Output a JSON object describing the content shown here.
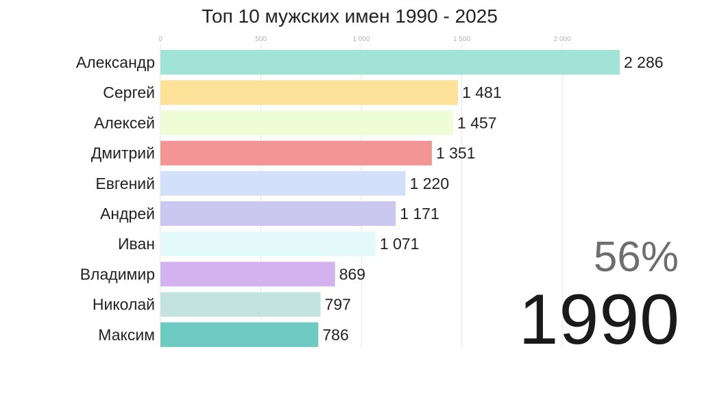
{
  "chart_data": {
    "type": "bar",
    "orientation": "horizontal",
    "title": "Топ 10 мужских имен 1990 - 2025",
    "categories": [
      "Александр",
      "Сергей",
      "Алексей",
      "Дмитрий",
      "Евгений",
      "Андрей",
      "Иван",
      "Владимир",
      "Николай",
      "Максим"
    ],
    "values": [
      2286,
      1481,
      1457,
      1351,
      1220,
      1171,
      1071,
      869,
      797,
      786
    ],
    "value_labels": [
      "2 286",
      "1 481",
      "1 457",
      "1 351",
      "1 220",
      "1 171",
      "1 071",
      "869",
      "797",
      "786"
    ],
    "colors": [
      "#a1e3d6",
      "#fde198",
      "#effdd6",
      "#f49595",
      "#d2e0fb",
      "#cbc7f0",
      "#e3f9fa",
      "#d4b1ef",
      "#c3e4de",
      "#6ecbc4"
    ],
    "x_ticks": [
      0,
      500,
      1000,
      1500,
      2000
    ],
    "x_tick_labels": [
      "0",
      "500",
      "1 000",
      "1 500",
      "2 000"
    ],
    "xlim": [
      0,
      2286
    ],
    "grid": true,
    "xlabel": "",
    "ylabel": ""
  },
  "overlay": {
    "percent": "56%",
    "year": "1990"
  }
}
